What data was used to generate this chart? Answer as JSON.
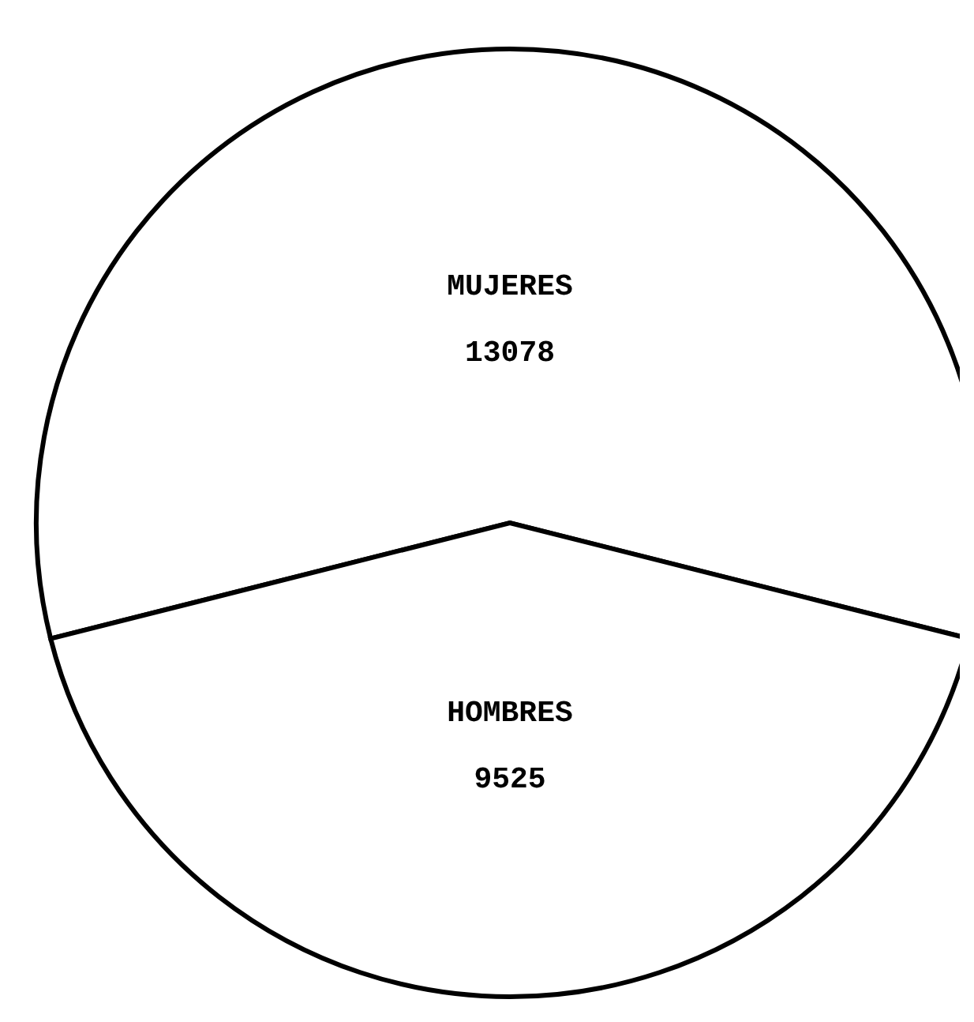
{
  "chart_data": {
    "type": "pie",
    "categories": [
      "MUJERES",
      "HOMBRES"
    ],
    "values": [
      13078,
      9525
    ],
    "colors": [
      "#ffffff",
      "#ffffff"
    ],
    "data_labels": true
  }
}
